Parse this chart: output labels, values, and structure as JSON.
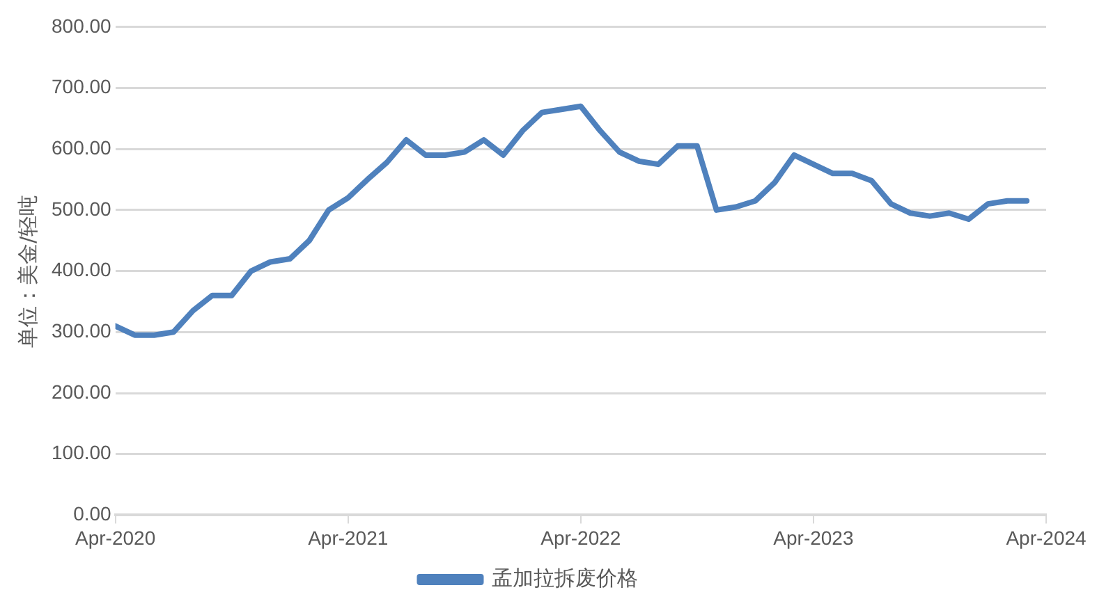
{
  "chart_data": {
    "type": "line",
    "ylabel": "单位：美金/轻吨",
    "x": [
      "2020-04",
      "2020-05",
      "2020-06",
      "2020-07",
      "2020-08",
      "2020-09",
      "2020-10",
      "2020-11",
      "2020-12",
      "2021-01",
      "2021-02",
      "2021-03",
      "2021-04",
      "2021-05",
      "2021-06",
      "2021-07",
      "2021-08",
      "2021-09",
      "2021-10",
      "2021-11",
      "2021-12",
      "2022-01",
      "2022-02",
      "2022-03",
      "2022-04",
      "2022-05",
      "2022-06",
      "2022-07",
      "2022-08",
      "2022-09",
      "2022-10",
      "2022-11",
      "2022-12",
      "2023-01",
      "2023-02",
      "2023-03",
      "2023-04",
      "2023-05",
      "2023-06",
      "2023-07",
      "2023-08",
      "2023-09",
      "2023-10",
      "2023-11",
      "2023-12",
      "2024-01",
      "2024-02",
      "2024-03"
    ],
    "series": [
      {
        "name": "孟加拉拆废价格",
        "color": "#4f81bd",
        "values": [
          310,
          295,
          295,
          300,
          335,
          360,
          360,
          400,
          415,
          420,
          450,
          500,
          520,
          550,
          578,
          615,
          590,
          590,
          595,
          615,
          590,
          630,
          660,
          665,
          670,
          630,
          595,
          580,
          575,
          605,
          605,
          500,
          505,
          515,
          545,
          590,
          575,
          560,
          560,
          548,
          510,
          495,
          490,
          495,
          485,
          510,
          515,
          515
        ]
      }
    ],
    "xlim": [
      "2020-04",
      "2024-04"
    ],
    "xticks": [
      {
        "value": "2020-04",
        "label": "Apr-2020"
      },
      {
        "value": "2021-04",
        "label": "Apr-2021"
      },
      {
        "value": "2022-04",
        "label": "Apr-2022"
      },
      {
        "value": "2023-04",
        "label": "Apr-2023"
      },
      {
        "value": "2024-04",
        "label": "Apr-2024"
      }
    ],
    "ylim": [
      0,
      800
    ],
    "yticks": [
      {
        "value": 0,
        "label": "0.00"
      },
      {
        "value": 100,
        "label": "100.00"
      },
      {
        "value": 200,
        "label": "200.00"
      },
      {
        "value": 300,
        "label": "300.00"
      },
      {
        "value": 400,
        "label": "400.00"
      },
      {
        "value": 500,
        "label": "500.00"
      },
      {
        "value": 600,
        "label": "600.00"
      },
      {
        "value": 700,
        "label": "700.00"
      },
      {
        "value": 800,
        "label": "800.00"
      }
    ],
    "grid": "y",
    "legend": "bottom",
    "marker": "none",
    "line_style": "solid"
  }
}
